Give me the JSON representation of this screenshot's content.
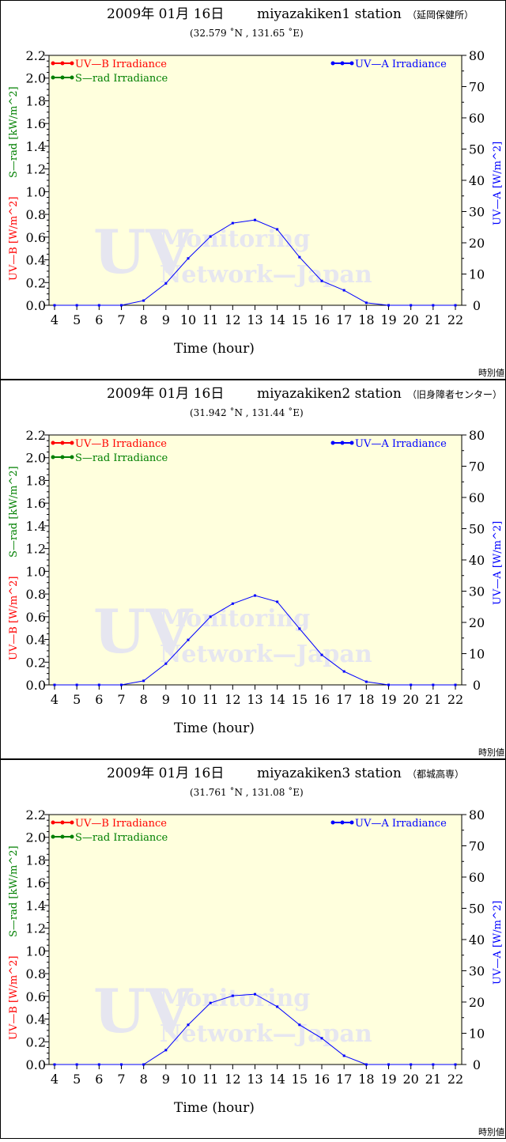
{
  "colors": {
    "uvb": "#ff0000",
    "srad": "#008000",
    "uva": "#0000ff",
    "plot_bg": "#ffffdd",
    "watermark": "#e6e6f0"
  },
  "watermark": {
    "big": "UV",
    "line1": "Monitoring",
    "line2": "Network—Japan"
  },
  "footer_label": "時別値",
  "chart_data": [
    {
      "type": "line",
      "title": "2009年 01月 16日",
      "station": "miyazakiken1 station",
      "station_jp": "（延岡保健所）",
      "coords": "(32.579 ˚N , 131.65 ˚E)",
      "xlabel": "Time (hour)",
      "ylabel_left_uvb": "UV—B [W/m^2]",
      "ylabel_left_srad": "S—rad [kW/m^2]",
      "ylabel_right": "UV—A [W/m^2]",
      "xlim": [
        4,
        22
      ],
      "ylim_left": [
        0,
        2.2
      ],
      "ylim_right": [
        0,
        80
      ],
      "x_ticks": [
        "4",
        "5",
        "6",
        "7",
        "8",
        "9",
        "10",
        "11",
        "12",
        "13",
        "14",
        "15",
        "16",
        "17",
        "18",
        "19",
        "20",
        "21",
        "22"
      ],
      "y_left_ticks": [
        "0.0",
        "0.2",
        "0.4",
        "0.6",
        "0.8",
        "1.0",
        "1.2",
        "1.4",
        "1.6",
        "1.8",
        "2.0",
        "2.2"
      ],
      "y_right_ticks": [
        "0",
        "10",
        "20",
        "30",
        "40",
        "50",
        "60",
        "70",
        "80"
      ],
      "legend": {
        "uvb": "UV—B Irradiance",
        "srad": "S—rad Irradiance",
        "uva": "UV—A Irradiance"
      },
      "series": [
        {
          "name": "UV—A Irradiance",
          "axis": "right",
          "x": [
            4,
            5,
            6,
            7,
            8,
            9,
            10,
            11,
            12,
            13,
            14,
            15,
            16,
            17,
            18,
            19,
            20,
            21,
            22
          ],
          "values": [
            0,
            0,
            0,
            0,
            1.5,
            7,
            15,
            22,
            26.3,
            27.3,
            24.3,
            15.4,
            7.8,
            4.8,
            0.8,
            0,
            0,
            0,
            0
          ]
        }
      ]
    },
    {
      "type": "line",
      "title": "2009年 01月 16日",
      "station": "miyazakiken2 station",
      "station_jp": "（旧身障者センター）",
      "coords": "(31.942 ˚N , 131.44 ˚E)",
      "xlabel": "Time (hour)",
      "ylabel_left_uvb": "UV—B [W/m^2]",
      "ylabel_left_srad": "S—rad [kW/m^2]",
      "ylabel_right": "UV—A [W/m^2]",
      "xlim": [
        4,
        22
      ],
      "ylim_left": [
        0,
        2.2
      ],
      "ylim_right": [
        0,
        80
      ],
      "x_ticks": [
        "4",
        "5",
        "6",
        "7",
        "8",
        "9",
        "10",
        "11",
        "12",
        "13",
        "14",
        "15",
        "16",
        "17",
        "18",
        "19",
        "20",
        "21",
        "22"
      ],
      "y_left_ticks": [
        "0.0",
        "0.2",
        "0.4",
        "0.6",
        "0.8",
        "1.0",
        "1.2",
        "1.4",
        "1.6",
        "1.8",
        "2.0",
        "2.2"
      ],
      "y_right_ticks": [
        "0",
        "10",
        "20",
        "30",
        "40",
        "50",
        "60",
        "70",
        "80"
      ],
      "legend": {
        "uvb": "UV—B Irradiance",
        "srad": "S—rad Irradiance",
        "uva": "UV—A Irradiance"
      },
      "series": [
        {
          "name": "UV—A Irradiance",
          "axis": "right",
          "x": [
            4,
            5,
            6,
            7,
            8,
            9,
            10,
            11,
            12,
            13,
            14,
            15,
            16,
            17,
            18,
            19,
            20,
            21,
            22
          ],
          "values": [
            0,
            0,
            0,
            0,
            1.3,
            6.8,
            14.4,
            21.8,
            26,
            28.6,
            26.6,
            18,
            9.6,
            4.3,
            1,
            0,
            0,
            0,
            0
          ]
        }
      ]
    },
    {
      "type": "line",
      "title": "2009年 01月 16日",
      "station": "miyazakiken3 station",
      "station_jp": "（都城高専）",
      "coords": "(31.761 ˚N , 131.08 ˚E)",
      "xlabel": "Time (hour)",
      "ylabel_left_uvb": "UV—B [W/m^2]",
      "ylabel_left_srad": "S—rad [kW/m^2]",
      "ylabel_right": "UV—A [W/m^2]",
      "xlim": [
        4,
        22
      ],
      "ylim_left": [
        0,
        2.2
      ],
      "ylim_right": [
        0,
        80
      ],
      "x_ticks": [
        "4",
        "5",
        "6",
        "7",
        "8",
        "9",
        "10",
        "11",
        "12",
        "13",
        "14",
        "15",
        "16",
        "17",
        "18",
        "19",
        "20",
        "21",
        "22"
      ],
      "y_left_ticks": [
        "0.0",
        "0.2",
        "0.4",
        "0.6",
        "0.8",
        "1.0",
        "1.2",
        "1.4",
        "1.6",
        "1.8",
        "2.0",
        "2.2"
      ],
      "y_right_ticks": [
        "0",
        "10",
        "20",
        "30",
        "40",
        "50",
        "60",
        "70",
        "80"
      ],
      "legend": {
        "uvb": "UV—B Irradiance",
        "srad": "S—rad Irradiance",
        "uva": "UV—A Irradiance"
      },
      "series": [
        {
          "name": "UV—A Irradiance",
          "axis": "right",
          "x": [
            4,
            5,
            6,
            7,
            8,
            9,
            10,
            11,
            12,
            13,
            14,
            15,
            16,
            17,
            18,
            19,
            20,
            21,
            22
          ],
          "values": [
            0,
            0,
            0,
            0,
            0,
            4.6,
            12.7,
            19.7,
            22,
            22.5,
            18.5,
            12.7,
            8.4,
            2.8,
            0,
            0,
            0,
            0,
            0
          ]
        }
      ]
    }
  ]
}
